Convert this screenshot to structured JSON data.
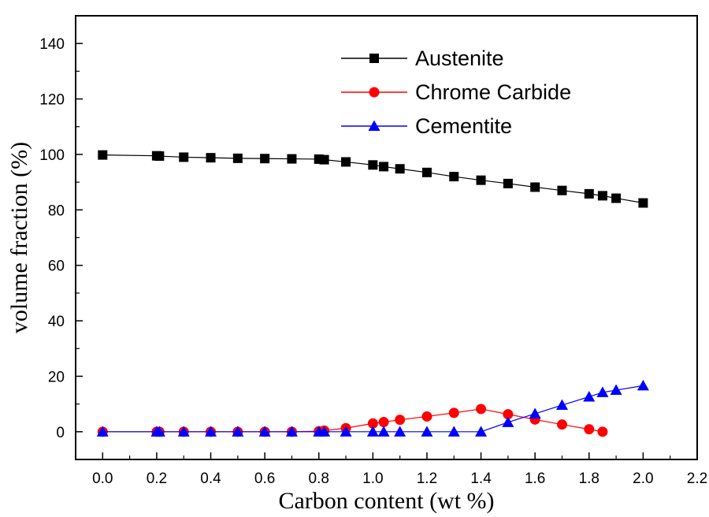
{
  "chart_data": {
    "type": "line",
    "title": "",
    "xlabel": "Carbon content (wt %)",
    "ylabel": "volume fraction (%)",
    "xlim": [
      -0.1,
      2.2
    ],
    "ylim": [
      -10,
      150
    ],
    "xticks": [
      0.0,
      0.2,
      0.4,
      0.6,
      0.8,
      1.0,
      1.2,
      1.4,
      1.6,
      1.8,
      2.0,
      2.2
    ],
    "xtick_labels": [
      "0.0",
      "0.2",
      "0.4",
      "0.6",
      "0.8",
      "1.0",
      "1.2",
      "1.4",
      "1.6",
      "1.8",
      "2.0",
      "2.2"
    ],
    "yticks": [
      0,
      20,
      40,
      60,
      80,
      100,
      120,
      140
    ],
    "ytick_labels": [
      "0",
      "20",
      "40",
      "60",
      "80",
      "100",
      "120",
      "140"
    ],
    "grid": false,
    "legend_position": "top-right",
    "series": [
      {
        "name": "Austenite",
        "color": "#000000",
        "marker": "square",
        "x": [
          0.0,
          0.2,
          0.21,
          0.3,
          0.4,
          0.5,
          0.6,
          0.7,
          0.8,
          0.82,
          0.9,
          1.0,
          1.04,
          1.1,
          1.2,
          1.3,
          1.4,
          1.5,
          1.6,
          1.7,
          1.8,
          1.85,
          1.9,
          2.0
        ],
        "y": [
          99.8,
          99.5,
          99.4,
          99.0,
          98.8,
          98.6,
          98.5,
          98.4,
          98.3,
          98.1,
          97.3,
          96.2,
          95.6,
          94.8,
          93.5,
          92.0,
          90.7,
          89.5,
          88.2,
          87.0,
          85.8,
          85.1,
          84.2,
          82.5
        ]
      },
      {
        "name": "Chrome Carbide",
        "color": "#ff0000",
        "marker": "circle",
        "x": [
          0.0,
          0.2,
          0.21,
          0.3,
          0.4,
          0.5,
          0.6,
          0.7,
          0.8,
          0.82,
          0.9,
          1.0,
          1.04,
          1.1,
          1.2,
          1.3,
          1.4,
          1.5,
          1.6,
          1.7,
          1.8,
          1.85
        ],
        "y": [
          0,
          0,
          0,
          0,
          0,
          0,
          0,
          0,
          0.2,
          0.4,
          1.3,
          3.0,
          3.5,
          4.3,
          5.5,
          6.8,
          8.2,
          6.3,
          4.4,
          2.6,
          0.9,
          0
        ]
      },
      {
        "name": "Cementite",
        "color": "#0000ff",
        "marker": "triangle",
        "x": [
          0.0,
          0.2,
          0.21,
          0.3,
          0.4,
          0.5,
          0.6,
          0.7,
          0.8,
          0.82,
          0.9,
          1.0,
          1.04,
          1.1,
          1.2,
          1.3,
          1.4,
          1.5,
          1.6,
          1.7,
          1.8,
          1.85,
          1.9,
          2.0
        ],
        "y": [
          0,
          0,
          0,
          0,
          0,
          0,
          0,
          0,
          0,
          0,
          0,
          0,
          0,
          0,
          0,
          0,
          0,
          3.4,
          6.5,
          9.6,
          12.6,
          14.2,
          15.0,
          16.6
        ]
      }
    ]
  }
}
